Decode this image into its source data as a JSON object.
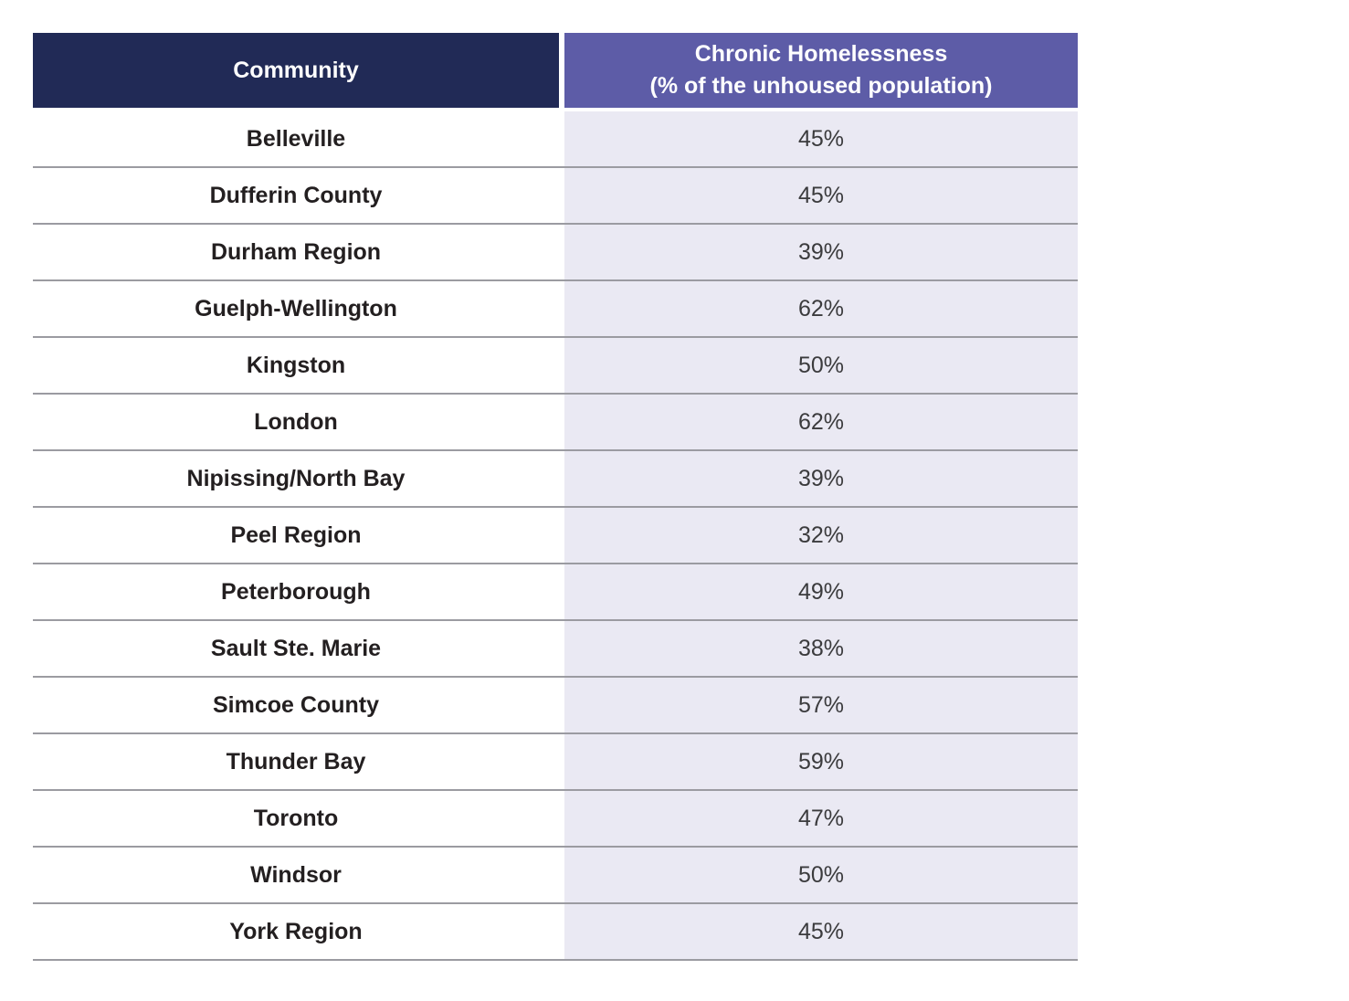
{
  "table": {
    "headers": {
      "community": "Community",
      "value_line1": "Chronic Homelessness",
      "value_line2": "(% of the unhoused population)"
    },
    "rows": [
      {
        "community": "Belleville",
        "value": "45%"
      },
      {
        "community": "Dufferin County",
        "value": "45%"
      },
      {
        "community": "Durham Region",
        "value": "39%"
      },
      {
        "community": "Guelph-Wellington",
        "value": "62%"
      },
      {
        "community": "Kingston",
        "value": "50%"
      },
      {
        "community": "London",
        "value": "62%"
      },
      {
        "community": "Nipissing/North Bay",
        "value": "39%"
      },
      {
        "community": "Peel Region",
        "value": "32%"
      },
      {
        "community": "Peterborough",
        "value": "49%"
      },
      {
        "community": "Sault Ste. Marie",
        "value": "38%"
      },
      {
        "community": "Simcoe County",
        "value": "57%"
      },
      {
        "community": "Thunder Bay",
        "value": "59%"
      },
      {
        "community": "Toronto",
        "value": "47%"
      },
      {
        "community": "Windsor",
        "value": "50%"
      },
      {
        "community": "York Region",
        "value": "45%"
      }
    ],
    "colors": {
      "header_community_bg": "#212A56",
      "header_value_bg": "#5D5CA7",
      "value_column_bg": "#EAE9F3",
      "row_separator": "#9B9BA1",
      "community_text": "#231F20",
      "value_text": "#3B3B3D"
    }
  },
  "chart_data": {
    "type": "table",
    "title": "Chronic Homelessness (% of the unhoused population) by Community",
    "categories": [
      "Belleville",
      "Dufferin County",
      "Durham Region",
      "Guelph-Wellington",
      "Kingston",
      "London",
      "Nipissing/North Bay",
      "Peel Region",
      "Peterborough",
      "Sault Ste. Marie",
      "Simcoe County",
      "Thunder Bay",
      "Toronto",
      "Windsor",
      "York Region"
    ],
    "values": [
      45,
      45,
      39,
      62,
      50,
      62,
      39,
      32,
      49,
      38,
      57,
      59,
      47,
      50,
      45
    ]
  }
}
